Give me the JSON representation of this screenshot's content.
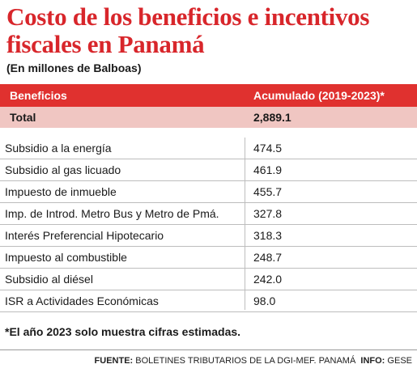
{
  "title": "Costo de los beneficios e incentivos fiscales en Panamá",
  "subtitle": "(En millones de Balboas)",
  "table": {
    "header": {
      "col1": "Beneficios",
      "col2": "Acumulado (2019-2023)*"
    },
    "total": {
      "label": "Total",
      "value": "2,889.1"
    },
    "rows": [
      {
        "label": "Subsidio a la energía",
        "value": "474.5"
      },
      {
        "label": "Subsidio al gas licuado",
        "value": "461.9"
      },
      {
        "label": "Impuesto de inmueble",
        "value": "455.7"
      },
      {
        "label": "Imp. de Introd. Metro Bus y Metro de Pmá.",
        "value": "327.8"
      },
      {
        "label": "Interés Preferencial Hipotecario",
        "value": "318.3"
      },
      {
        "label": "Impuesto al combustible",
        "value": "248.7"
      },
      {
        "label": "Subsidio al diésel",
        "value": "242.0"
      },
      {
        "label": "ISR a Actividades Económicas",
        "value": "98.0"
      }
    ]
  },
  "note": "*El año 2023 solo muestra cifras estimadas.",
  "source": {
    "fuente_label": "FUENTE:",
    "fuente_text": "BOLETINES TRIBUTARIOS DE LA DGI-MEF. PANAMÁ",
    "info_label": "INFO:",
    "info_text": "GESE"
  },
  "colors": {
    "accent": "#e0312f",
    "title": "#d8262b",
    "total_bg": "#f0c6c2"
  },
  "chart_data": {
    "type": "table",
    "title": "Costo de los beneficios e incentivos fiscales en Panamá",
    "subtitle": "(En millones de Balboas)",
    "columns": [
      "Beneficios",
      "Acumulado (2019-2023)*"
    ],
    "total": 2889.1,
    "categories": [
      "Subsidio a la energía",
      "Subsidio al gas licuado",
      "Impuesto de inmueble",
      "Imp. de Introd. Metro Bus y Metro de Pmá.",
      "Interés Preferencial Hipotecario",
      "Impuesto al combustible",
      "Subsidio al diésel",
      "ISR a Actividades Económicas"
    ],
    "values": [
      474.5,
      461.9,
      455.7,
      327.8,
      318.3,
      248.7,
      242.0,
      98.0
    ]
  }
}
